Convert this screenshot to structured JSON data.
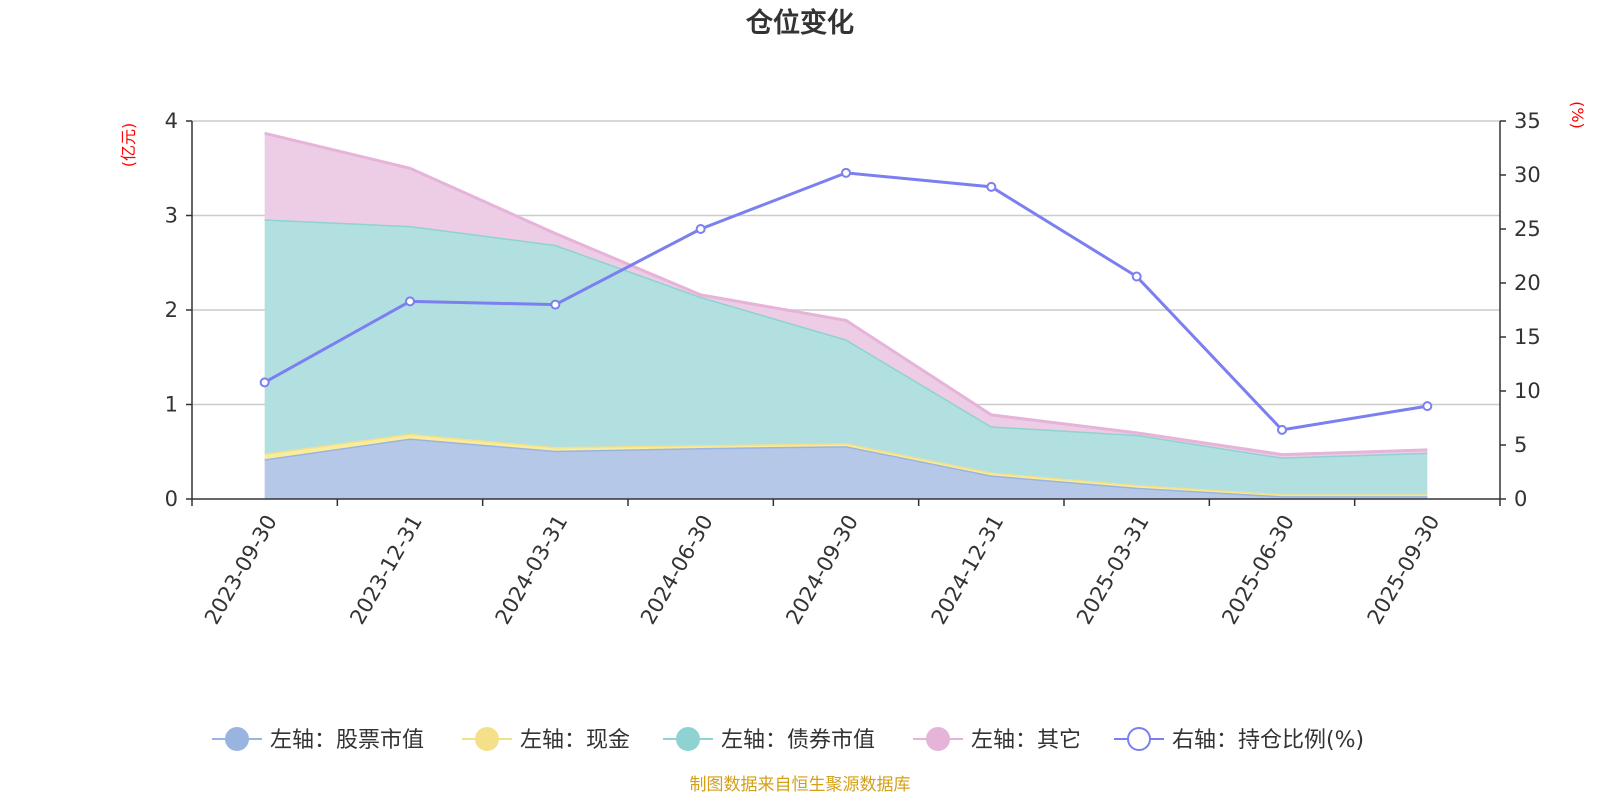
{
  "chart_data": {
    "type": "area",
    "title": "仓位变化",
    "categories": [
      "2023-09-30",
      "2023-12-31",
      "2024-03-31",
      "2024-06-30",
      "2024-09-30",
      "2024-12-31",
      "2025-03-31",
      "2025-06-30",
      "2025-09-30"
    ],
    "left_axis": {
      "unit": "(亿元)",
      "ylim": [
        0,
        4
      ],
      "ticks": [
        "0",
        "1",
        "2",
        "3",
        "4"
      ]
    },
    "right_axis": {
      "unit": "(%)",
      "ylim": [
        0,
        35
      ],
      "ticks": [
        "0",
        "5",
        "10",
        "15",
        "20",
        "25",
        "30",
        "35"
      ]
    },
    "stacked_series": [
      {
        "name": "左轴：股票市值",
        "color": "#9ab4e0",
        "fill": "#b6c8e8",
        "values": [
          0.42,
          0.64,
          0.51,
          0.54,
          0.56,
          0.25,
          0.12,
          0.03,
          0.03
        ]
      },
      {
        "name": "左轴：现金",
        "color": "#f5e08a",
        "fill": "#f8ec9e",
        "values": [
          0.06,
          0.05,
          0.04,
          0.03,
          0.03,
          0.03,
          0.03,
          0.02,
          0.02
        ]
      },
      {
        "name": "左轴：债券市值",
        "color": "#8fd2d2",
        "fill": "#b2e0e0",
        "values": [
          2.48,
          2.2,
          2.14,
          1.57,
          1.1,
          0.49,
          0.53,
          0.39,
          0.44
        ]
      },
      {
        "name": "左轴：其它",
        "color": "#e6b3d9",
        "fill": "#edcde6",
        "values": [
          0.91,
          0.61,
          0.12,
          0.02,
          0.2,
          0.12,
          0.02,
          0.03,
          0.03
        ]
      }
    ],
    "line_series": {
      "name": "右轴：持仓比例(%)",
      "color": "#7b7ff0",
      "values": [
        10.8,
        18.3,
        18.0,
        25.0,
        30.2,
        28.9,
        20.6,
        6.4,
        8.6
      ]
    },
    "legend_position": "bottom"
  },
  "footer": {
    "text": "制图数据来自恒生聚源数据库",
    "color": "#d4a017"
  }
}
